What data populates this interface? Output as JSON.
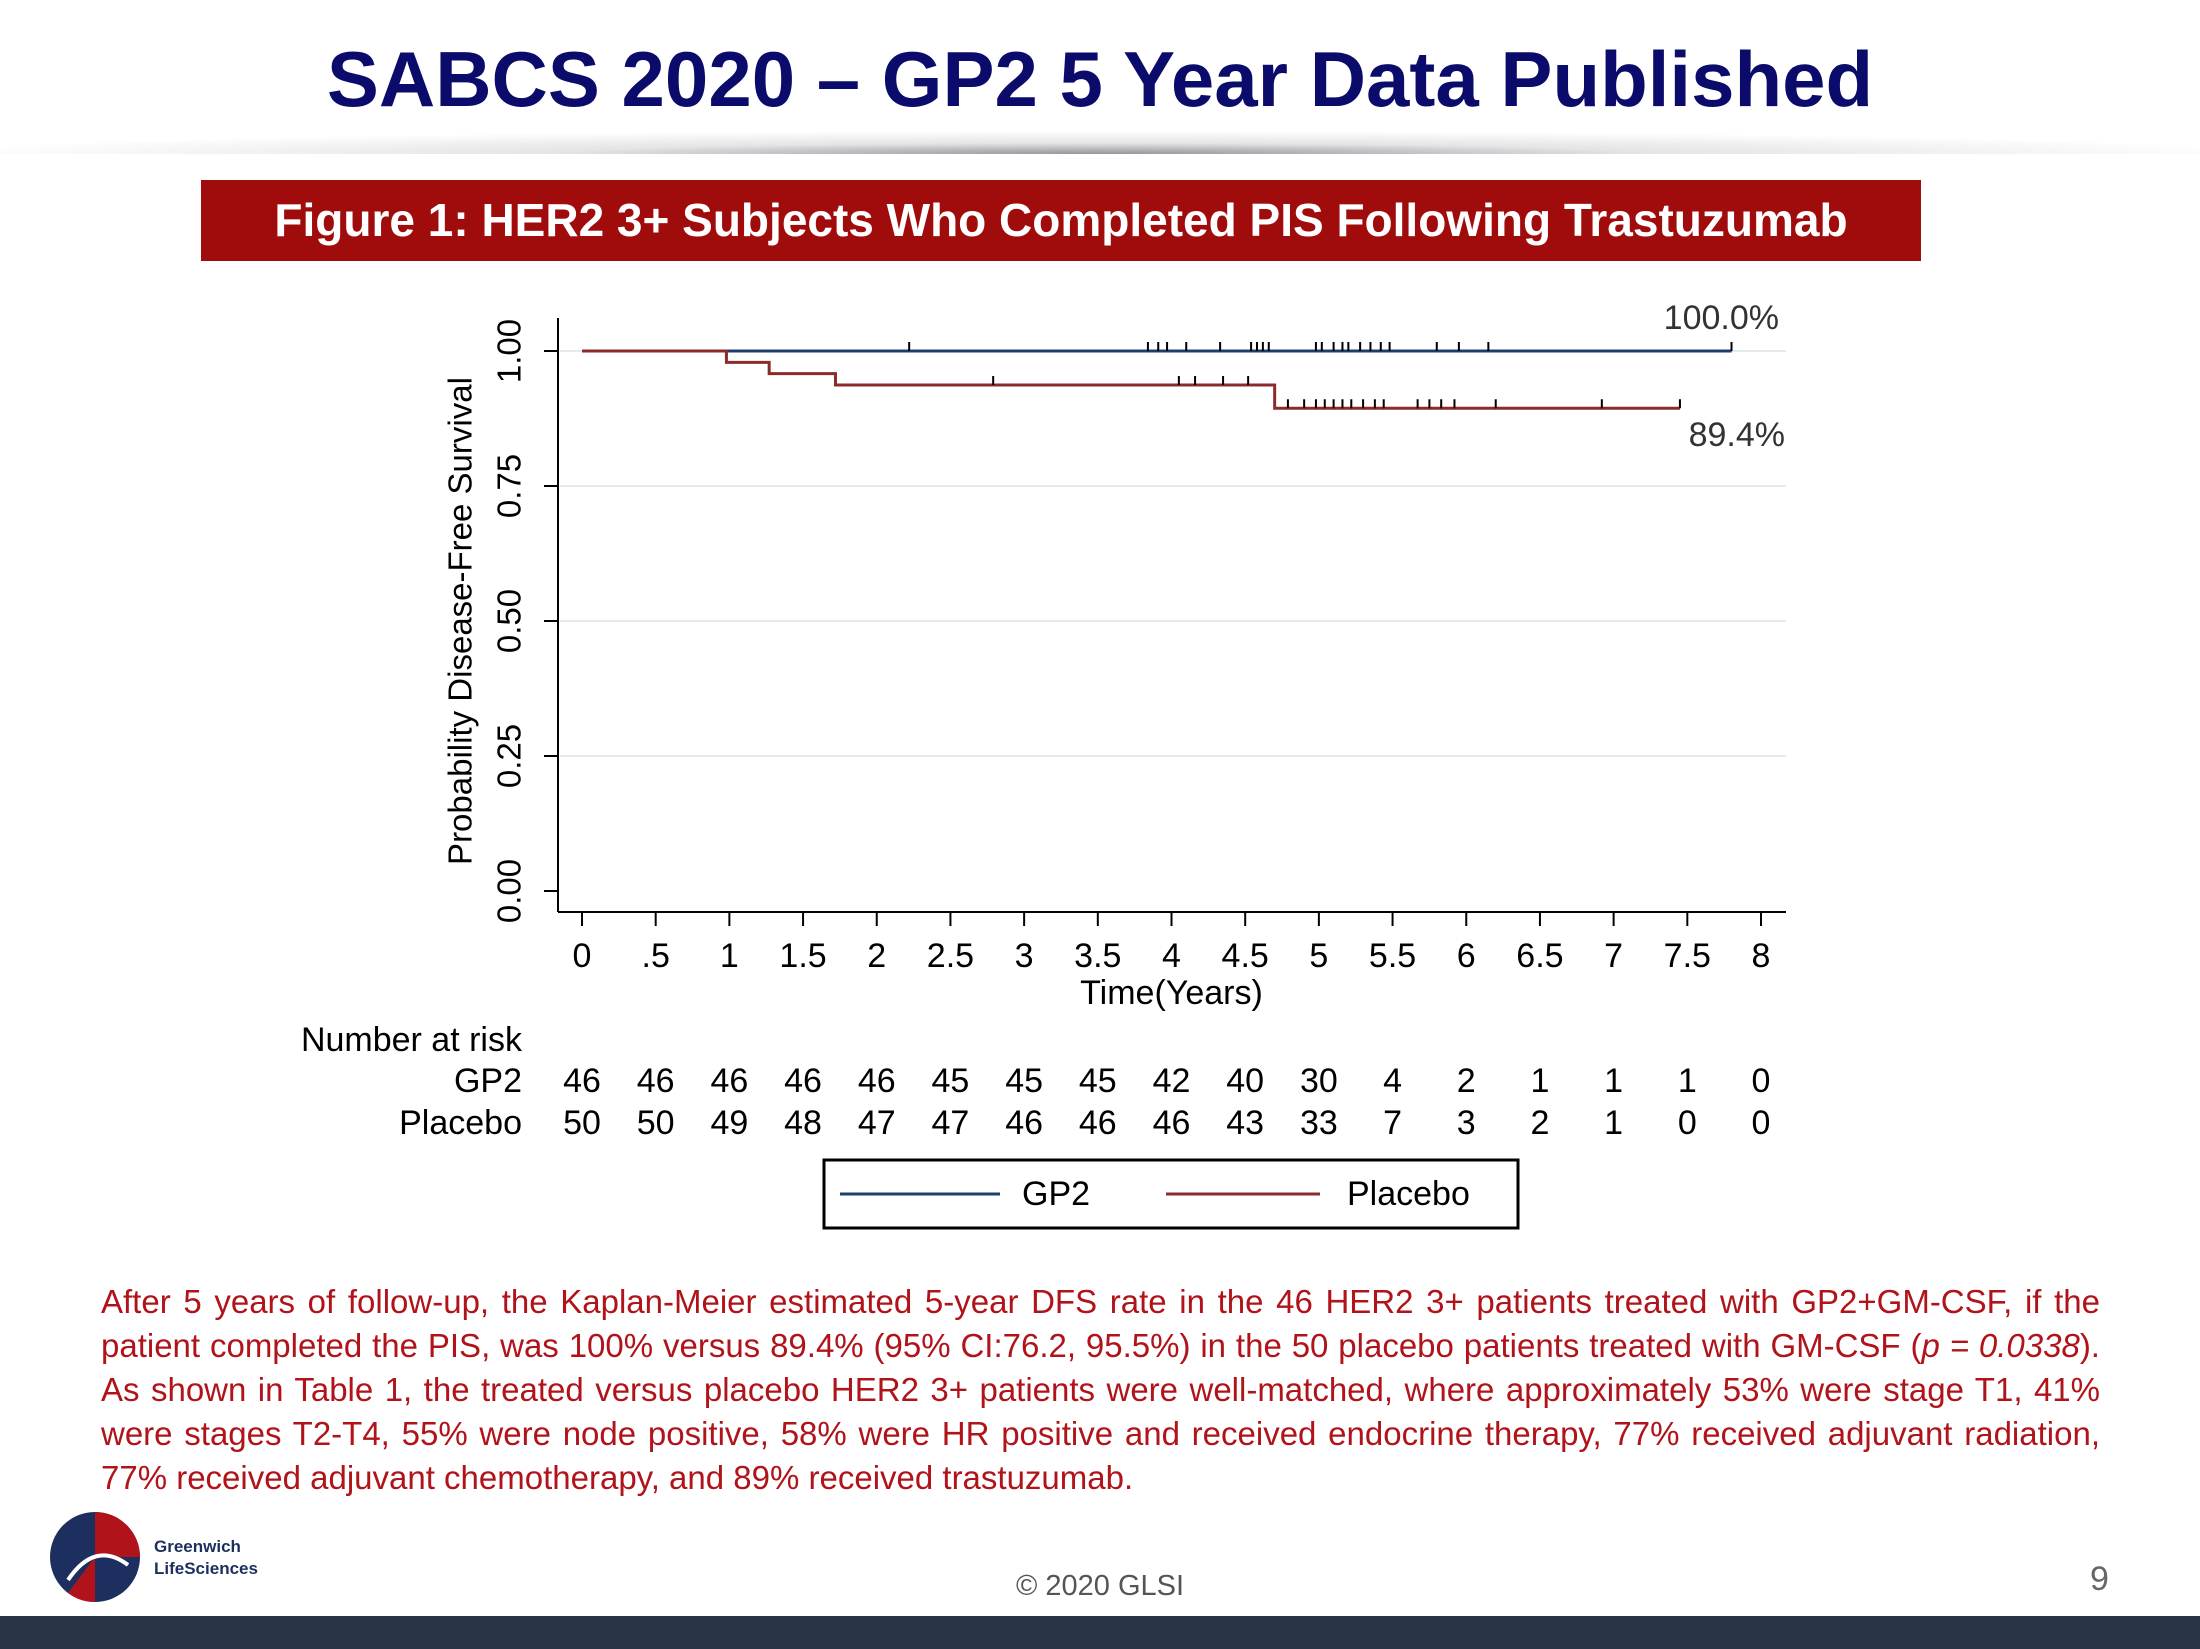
{
  "header": {
    "title": "SABCS 2020 – GP2 5 Year Data Published"
  },
  "figure_title": "Figure 1: HER2 3+ Subjects Who Completed PIS Following Trastuzumab",
  "chart_data": {
    "type": "line",
    "step": "post",
    "xlabel": "Time(Years)",
    "ylabel": "Probability Disease-Free Survival",
    "xlim": [
      0,
      8
    ],
    "ylim": [
      0,
      1
    ],
    "xticks": [
      0,
      {
        "value": 0.5,
        "label": ".5"
      },
      1,
      1.5,
      2,
      2.5,
      3,
      3.5,
      4,
      4.5,
      5,
      5.5,
      6,
      6.5,
      7,
      7.5,
      8
    ],
    "yticks": [
      {
        "value": 0,
        "label": "0.00"
      },
      {
        "value": 0.25,
        "label": "0.25"
      },
      {
        "value": 0.5,
        "label": "0.50"
      },
      {
        "value": 0.75,
        "label": "0.75"
      },
      {
        "value": 1,
        "label": "1.00"
      }
    ],
    "grid": true,
    "series": [
      {
        "name": "GP2",
        "color": "#1f3f6b",
        "x": [
          0,
          7.8
        ],
        "values": [
          1,
          1
        ],
        "censored": [
          2.22,
          3.84,
          3.91,
          3.97,
          4.1,
          4.33,
          4.54,
          4.58,
          4.62,
          4.66,
          4.98,
          5.02,
          5.1,
          5.16,
          5.2,
          5.28,
          5.35,
          5.42,
          5.48,
          5.8,
          5.95,
          6.15,
          7.8
        ],
        "end_label": "100.0%"
      },
      {
        "name": "Placebo",
        "color": "#8c2b2b",
        "x": [
          0,
          0.98,
          1.27,
          1.72,
          4.7,
          7.45
        ],
        "values": [
          1,
          0.979,
          0.958,
          0.937,
          0.894,
          0.894
        ],
        "censored": [
          2.79,
          4.05,
          4.16,
          4.35,
          4.52,
          4.79,
          4.9,
          4.98,
          5.04,
          5.1,
          5.16,
          5.22,
          5.3,
          5.38,
          5.44,
          5.67,
          5.75,
          5.83,
          5.92,
          6.2,
          6.92,
          7.45
        ],
        "end_label": "89.4%"
      }
    ],
    "risk_table": {
      "title": "Number at risk",
      "rows": [
        {
          "name": "GP2",
          "values": [
            46,
            46,
            46,
            46,
            46,
            45,
            45,
            45,
            42,
            40,
            30,
            4,
            2,
            1,
            1,
            1,
            0
          ]
        },
        {
          "name": "Placebo",
          "values": [
            50,
            50,
            49,
            48,
            47,
            47,
            46,
            46,
            46,
            43,
            33,
            7,
            3,
            2,
            1,
            0,
            0
          ]
        }
      ]
    }
  },
  "caption": [
    "After 5 years of follow-up, the Kaplan-Meier estimated 5-year DFS rate in the 46 HER2 3+ patients treated with GP2+GM-CSF, if the patient completed the PIS, was 100% versus 89.4% (95% CI:76.2, 95.5%) in the 50 placebo patients treated with GM-CSF (",
    "p = 0.0338",
    "). As shown in Table 1, the treated versus placebo HER2 3+ patients were well-matched, where approximately 53% were stage T1, 41% were stages T2-T4, 55% were node positive, 58% were HR positive and received endocrine therapy, 77% received adjuvant radiation, 77% received adjuvant chemotherapy, and 89% received trastuzumab."
  ],
  "logo": [
    "Greenwich",
    "LifeSciences"
  ],
  "footer": "© 2020 GLSI",
  "page_number": "9"
}
